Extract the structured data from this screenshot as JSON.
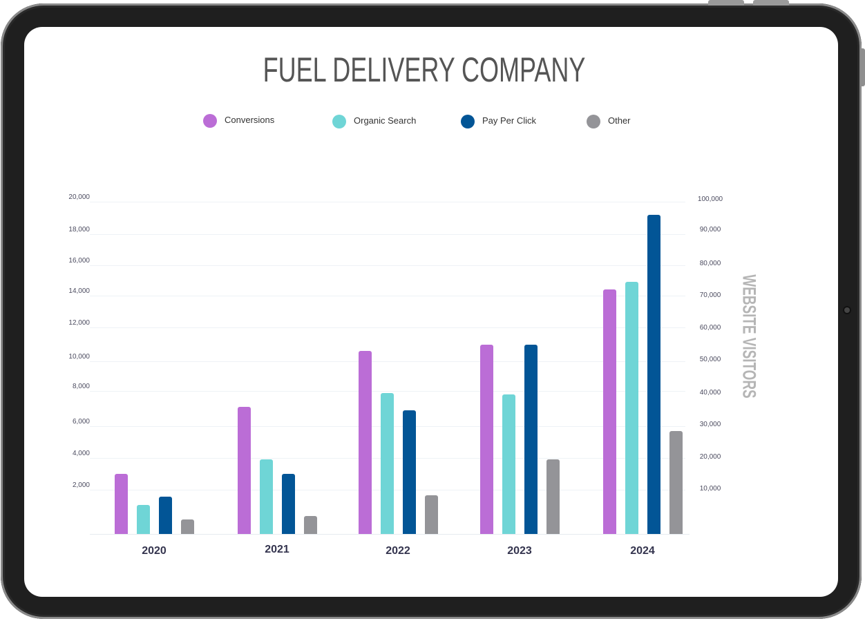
{
  "chart_data": {
    "type": "bar",
    "title": "FUEL DELIVERY COMPANY",
    "categories": [
      "2020",
      "2021",
      "2022",
      "2023",
      "2024"
    ],
    "series": [
      {
        "name": "Conversions",
        "color": "#bb6dd6",
        "values": [
          3000,
          7100,
          10600,
          11000,
          14400
        ]
      },
      {
        "name": "Organic Search",
        "color": "#6fd5d6",
        "values": [
          1300,
          3900,
          7900,
          7800,
          14900
        ]
      },
      {
        "name": "Pay Per Click",
        "color": "#025596",
        "values": [
          1700,
          3000,
          6900,
          11000,
          19200
        ]
      },
      {
        "name": "Other",
        "color": "#949498",
        "values": [
          650,
          800,
          1750,
          3900,
          5700
        ]
      }
    ],
    "xlabel": "",
    "ylabel": "",
    "y2label": "WEBSITE VISITORS",
    "ylim": [
      0,
      20000
    ],
    "y2lim": [
      0,
      100000
    ],
    "yticks": [
      "20,000",
      "18,000",
      "16,000",
      "14,000",
      "12,000",
      "10,000",
      "8,000",
      "6,000",
      "4,000",
      "2,000"
    ],
    "y2ticks": [
      "100,000",
      "90,000",
      "80,000",
      "70,000",
      "60,000",
      "50,000",
      "40,000",
      "30,000",
      "20,000",
      "10,000"
    ],
    "grid": true,
    "legend_position": "top"
  }
}
